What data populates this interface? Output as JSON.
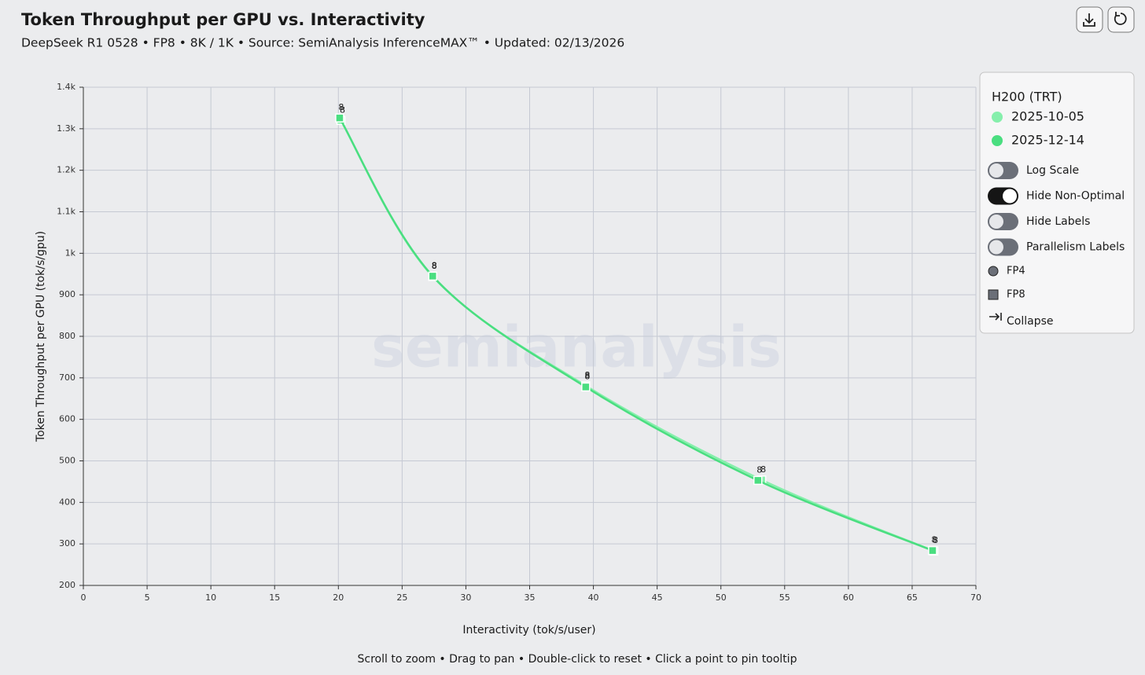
{
  "chart_data": {
    "type": "line",
    "title": "Token Throughput per GPU vs. Interactivity",
    "subtitle": "DeepSeek R1 0528 • FP8 • 8K / 1K • Source: SemiAnalysis InferenceMAX™ • Updated: 02/13/2026",
    "x_label": "Interactivity (tok/s/user)",
    "y_label": "Token Throughput per GPU (tok/s/gpu)",
    "xlim": [
      0,
      70
    ],
    "ylim": [
      200,
      1400
    ],
    "xticks": [
      0,
      5,
      10,
      15,
      20,
      25,
      30,
      35,
      40,
      45,
      50,
      55,
      60,
      65,
      70
    ],
    "yticks": [
      200,
      300,
      400,
      500,
      600,
      700,
      800,
      900,
      {
        "value": 1000,
        "label": "1k"
      },
      {
        "value": 1100,
        "label": "1.1k"
      },
      {
        "value": 1200,
        "label": "1.2k"
      },
      {
        "value": 1300,
        "label": "1.3k"
      },
      {
        "value": 1400,
        "label": "1.4k"
      }
    ],
    "grid": true,
    "log_scale": false,
    "legend": {
      "title": "H200 (TRT)",
      "position": "top-right"
    },
    "series": [
      {
        "name": "2025-10-05",
        "color": "#86efac",
        "x": [
          20.2,
          27.4,
          39.4,
          53.2,
          66.7
        ],
        "values": [
          1320,
          944,
          681,
          454,
          283
        ],
        "point_labels": [
          "8",
          "8",
          "8",
          "8",
          "8"
        ]
      },
      {
        "name": "2025-12-14",
        "color": "#4ade80",
        "x": [
          20.1,
          27.4,
          39.4,
          52.9,
          66.6
        ],
        "values": [
          1326,
          945,
          678,
          453,
          284
        ],
        "point_labels": [
          "8",
          "8",
          "8",
          "8",
          "8"
        ]
      }
    ],
    "toggles": [
      {
        "label": "Log Scale",
        "on": false
      },
      {
        "label": "Hide Non-Optimal",
        "on": true
      },
      {
        "label": "Hide Labels",
        "on": false
      },
      {
        "label": "Parallelism Labels",
        "on": false
      }
    ],
    "marker_shapes": [
      {
        "label": "FP4",
        "shape": "circle"
      },
      {
        "label": "FP8",
        "shape": "square"
      }
    ],
    "collapse_label": "Collapse",
    "watermark": "semianalysis",
    "hint": "Scroll to zoom • Drag to pan • Double-click to reset • Click a point to pin tooltip"
  }
}
